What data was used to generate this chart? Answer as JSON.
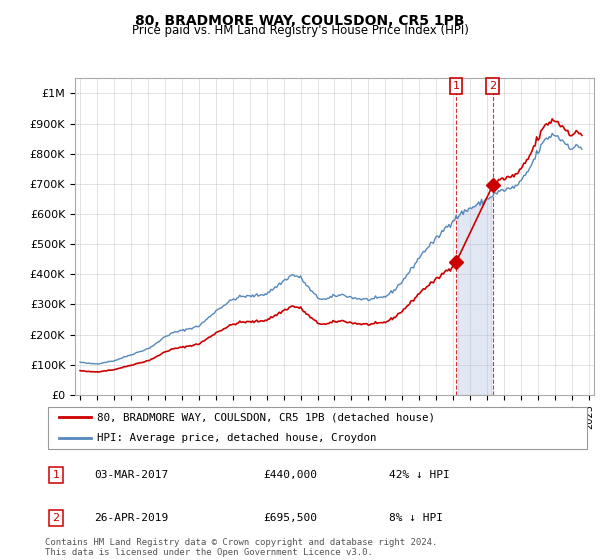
{
  "title": "80, BRADMORE WAY, COULSDON, CR5 1PB",
  "subtitle": "Price paid vs. HM Land Registry's House Price Index (HPI)",
  "ylim": [
    0,
    1050000
  ],
  "yticks": [
    0,
    100000,
    200000,
    300000,
    400000,
    500000,
    600000,
    700000,
    800000,
    900000,
    1000000
  ],
  "ytick_labels": [
    "£0",
    "£100K",
    "£200K",
    "£300K",
    "£400K",
    "£500K",
    "£600K",
    "£700K",
    "£800K",
    "£900K",
    "£1M"
  ],
  "hpi_color": "#5588bb",
  "hpi_fill_color": "#aabbdd",
  "price_color": "#cc0000",
  "bg_color": "#f0f4f8",
  "legend_label_price": "80, BRADMORE WAY, COULSDON, CR5 1PB (detached house)",
  "legend_label_hpi": "HPI: Average price, detached house, Croydon",
  "sale1_date": "03-MAR-2017",
  "sale1_price": 440000,
  "sale1_label": "42% ↓ HPI",
  "sale2_date": "26-APR-2019",
  "sale2_price": 695500,
  "sale2_label": "8% ↓ HPI",
  "footer": "Contains HM Land Registry data © Crown copyright and database right 2024.\nThis data is licensed under the Open Government Licence v3.0.",
  "sale1_year": 2017.167,
  "sale2_year": 2019.333,
  "xlim_left": 1994.7,
  "xlim_right": 2025.3
}
